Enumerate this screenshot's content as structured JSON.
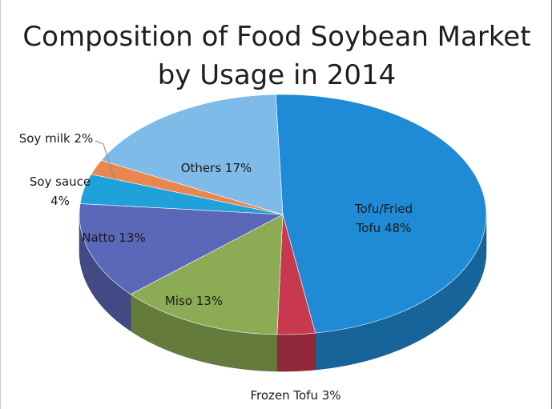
{
  "chart_data": {
    "type": "pie",
    "title_lines": [
      "Composition of Food Soybean Market",
      "by Usage in 2014"
    ],
    "unit": "%",
    "slices": [
      {
        "name": "Tofu/Fried Tofu",
        "value": 48,
        "label_lines": [
          "Tofu/Fried",
          "Tofu 48%"
        ],
        "color": "#1f8bd6"
      },
      {
        "name": "Frozen Tofu",
        "value": 3,
        "label_lines": [
          "Frozen Tofu 3%"
        ],
        "color": "#c8384f"
      },
      {
        "name": "Miso",
        "value": 13,
        "label_lines": [
          "Miso 13%"
        ],
        "color": "#8bab54"
      },
      {
        "name": "Natto",
        "value": 13,
        "label_lines": [
          "Natto 13%"
        ],
        "color": "#5b67b8"
      },
      {
        "name": "Soy sauce",
        "value": 4,
        "label_lines": [
          "Soy sauce",
          "4%"
        ],
        "color": "#1ea2d9"
      },
      {
        "name": "Soy milk",
        "value": 2,
        "label_lines": [
          "Soy milk 2%"
        ],
        "color": "#e8874e"
      },
      {
        "name": "Others",
        "value": 17,
        "label_lines": [
          "Others 17%"
        ],
        "color": "#7ebbe9"
      }
    ]
  }
}
